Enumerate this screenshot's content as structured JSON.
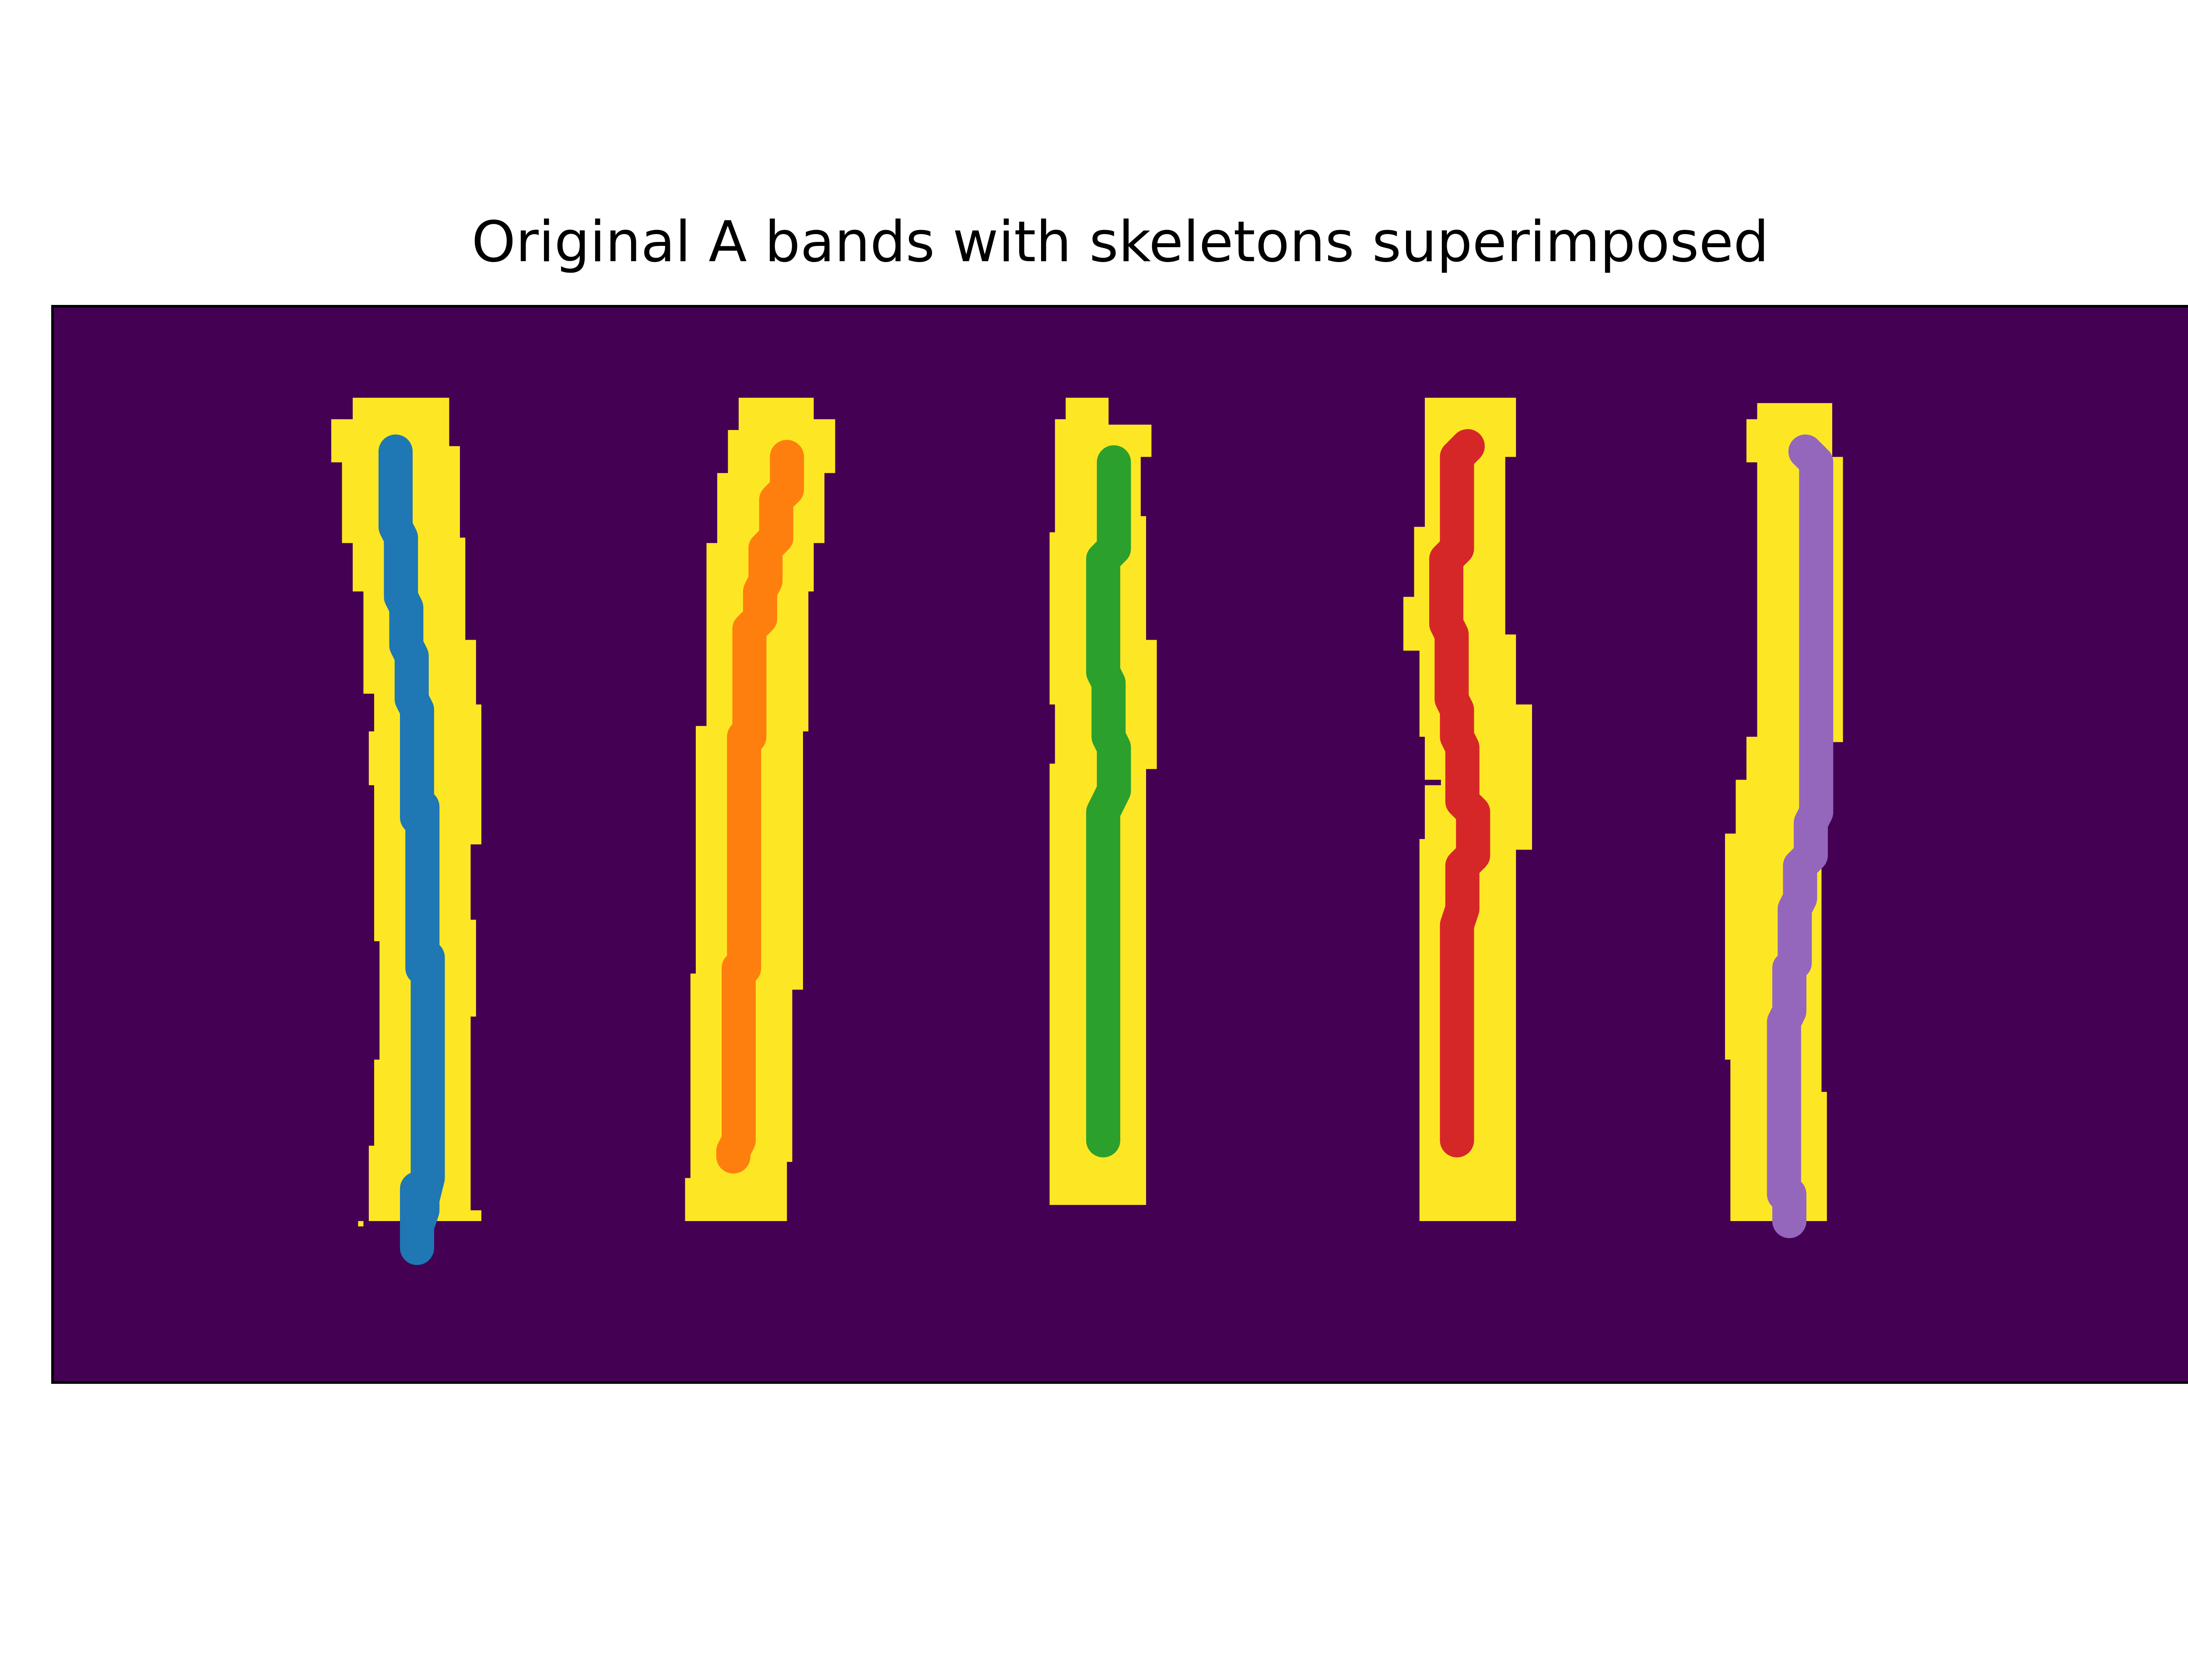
{
  "chart_data": {
    "type": "heatmap",
    "title": "Original A bands with skeletons superimposed",
    "xlabel": "",
    "ylabel": "",
    "axes_visible": false,
    "grid": false,
    "legend": "none",
    "xlim": [
      0,
      400
    ],
    "ylim": [
      200,
      0
    ],
    "colors": {
      "background": "#440154",
      "band": "#fde725",
      "frame": "#000000"
    },
    "bands": [
      {
        "polygon": [
          [
            56,
            17
          ],
          [
            56,
            21
          ],
          [
            52,
            21
          ],
          [
            52,
            29
          ],
          [
            54,
            29
          ],
          [
            54,
            44
          ],
          [
            56,
            44
          ],
          [
            56,
            53
          ],
          [
            58,
            53
          ],
          [
            58,
            72
          ],
          [
            60,
            72
          ],
          [
            60,
            79
          ],
          [
            59,
            79
          ],
          [
            59,
            89
          ],
          [
            60,
            89
          ],
          [
            60,
            118
          ],
          [
            61,
            118
          ],
          [
            61,
            140
          ],
          [
            60,
            140
          ],
          [
            60,
            156
          ],
          [
            59,
            156
          ],
          [
            59,
            170
          ],
          [
            57,
            170
          ],
          [
            57,
            171
          ],
          [
            58,
            171
          ],
          [
            58,
            170
          ],
          [
            80,
            170
          ],
          [
            80,
            168
          ],
          [
            78,
            168
          ],
          [
            78,
            132
          ],
          [
            79,
            132
          ],
          [
            79,
            114
          ],
          [
            78,
            114
          ],
          [
            78,
            100
          ],
          [
            80,
            100
          ],
          [
            80,
            74
          ],
          [
            79,
            74
          ],
          [
            79,
            62
          ],
          [
            77,
            62
          ],
          [
            77,
            43
          ],
          [
            76,
            43
          ],
          [
            76,
            26
          ],
          [
            74,
            26
          ],
          [
            74,
            17
          ]
        ]
      },
      {
        "polygon": [
          [
            128,
            17
          ],
          [
            128,
            23
          ],
          [
            126,
            23
          ],
          [
            126,
            31
          ],
          [
            124,
            31
          ],
          [
            124,
            44
          ],
          [
            122,
            44
          ],
          [
            122,
            78
          ],
          [
            120,
            78
          ],
          [
            120,
            124
          ],
          [
            119,
            124
          ],
          [
            119,
            162
          ],
          [
            118,
            162
          ],
          [
            118,
            170
          ],
          [
            137,
            170
          ],
          [
            137,
            159
          ],
          [
            138,
            159
          ],
          [
            138,
            127
          ],
          [
            140,
            127
          ],
          [
            140,
            79
          ],
          [
            141,
            79
          ],
          [
            141,
            53
          ],
          [
            142,
            53
          ],
          [
            142,
            44
          ],
          [
            144,
            44
          ],
          [
            144,
            31
          ],
          [
            146,
            31
          ],
          [
            146,
            21
          ],
          [
            142,
            21
          ],
          [
            142,
            17
          ]
        ]
      },
      {
        "polygon": [
          [
            189,
            17
          ],
          [
            189,
            21
          ],
          [
            187,
            21
          ],
          [
            187,
            42
          ],
          [
            186,
            42
          ],
          [
            186,
            74
          ],
          [
            187,
            74
          ],
          [
            187,
            85
          ],
          [
            186,
            85
          ],
          [
            186,
            167
          ],
          [
            204,
            167
          ],
          [
            204,
            86
          ],
          [
            206,
            86
          ],
          [
            206,
            62
          ],
          [
            204,
            62
          ],
          [
            204,
            39
          ],
          [
            203,
            39
          ],
          [
            203,
            28
          ],
          [
            205,
            28
          ],
          [
            205,
            22
          ],
          [
            197,
            22
          ],
          [
            197,
            17
          ]
        ]
      },
      {
        "polygon": [
          [
            256,
            17
          ],
          [
            256,
            41
          ],
          [
            254,
            41
          ],
          [
            254,
            54
          ],
          [
            252,
            54
          ],
          [
            252,
            64
          ],
          [
            255,
            64
          ],
          [
            255,
            80
          ],
          [
            256,
            80
          ],
          [
            256,
            88
          ],
          [
            259,
            88
          ],
          [
            259,
            89
          ],
          [
            256,
            89
          ],
          [
            256,
            99
          ],
          [
            255,
            99
          ],
          [
            255,
            170
          ],
          [
            273,
            170
          ],
          [
            273,
            101
          ],
          [
            276,
            101
          ],
          [
            276,
            74
          ],
          [
            273,
            74
          ],
          [
            273,
            61
          ],
          [
            271,
            61
          ],
          [
            271,
            45
          ],
          [
            271,
            28
          ],
          [
            273,
            28
          ],
          [
            273,
            17
          ]
        ]
      },
      {
        "polygon": [
          [
            318,
            18
          ],
          [
            318,
            21
          ],
          [
            316,
            21
          ],
          [
            316,
            29
          ],
          [
            318,
            29
          ],
          [
            318,
            80
          ],
          [
            316,
            80
          ],
          [
            316,
            88
          ],
          [
            314,
            88
          ],
          [
            314,
            98
          ],
          [
            312,
            98
          ],
          [
            312,
            140
          ],
          [
            313,
            140
          ],
          [
            313,
            170
          ],
          [
            331,
            170
          ],
          [
            331,
            146
          ],
          [
            330,
            146
          ],
          [
            330,
            103
          ],
          [
            331,
            103
          ],
          [
            331,
            89
          ],
          [
            332,
            89
          ],
          [
            332,
            81
          ],
          [
            334,
            81
          ],
          [
            334,
            28
          ],
          [
            332,
            28
          ],
          [
            332,
            18
          ]
        ]
      }
    ],
    "series": [
      {
        "color": "#1f77b4",
        "x": [
          64,
          64,
          65,
          65,
          66,
          66,
          67,
          67,
          68,
          68,
          69,
          69,
          70,
          70,
          70,
          70,
          70,
          69,
          69,
          68,
          68,
          68,
          68
        ],
        "y": [
          27,
          41,
          43,
          54,
          56,
          63,
          65,
          73,
          75,
          95,
          93,
          123,
          121,
          146,
          144,
          160,
          162,
          166,
          168,
          171,
          164,
          170,
          175
        ]
      },
      {
        "color": "#ff7f0e",
        "x": [
          137,
          137,
          135,
          135,
          133,
          133,
          132,
          132,
          130,
          130,
          129,
          129,
          129,
          129,
          128,
          128,
          127,
          127
        ],
        "y": [
          28,
          34,
          36,
          43,
          45,
          51,
          53,
          58,
          60,
          80,
          80,
          108,
          110,
          123,
          123,
          155,
          157,
          158
        ]
      },
      {
        "color": "#2ca02c",
        "x": [
          198,
          198,
          196,
          196,
          197,
          197,
          198,
          198,
          196,
          196,
          196
        ],
        "y": [
          29,
          45,
          47,
          68,
          70,
          80,
          82,
          90,
          94,
          110,
          155
        ]
      },
      {
        "color": "#d62728",
        "x": [
          264,
          262,
          262,
          260,
          260,
          261,
          261,
          262,
          262,
          263,
          263,
          265,
          265,
          263,
          263,
          262,
          262,
          262
        ],
        "y": [
          26,
          28,
          45,
          47,
          59,
          61,
          73,
          75,
          80,
          82,
          92,
          94,
          102,
          104,
          112,
          115,
          155,
          155
        ]
      },
      {
        "color": "#9467bd",
        "x": [
          327,
          329,
          329,
          328,
          328,
          326,
          326,
          325,
          325,
          324,
          324,
          323,
          323,
          323,
          323,
          324,
          324
        ],
        "y": [
          27,
          29,
          94,
          96,
          102,
          104,
          110,
          112,
          122,
          123,
          131,
          133,
          160,
          162,
          165,
          165,
          170
        ]
      }
    ]
  }
}
